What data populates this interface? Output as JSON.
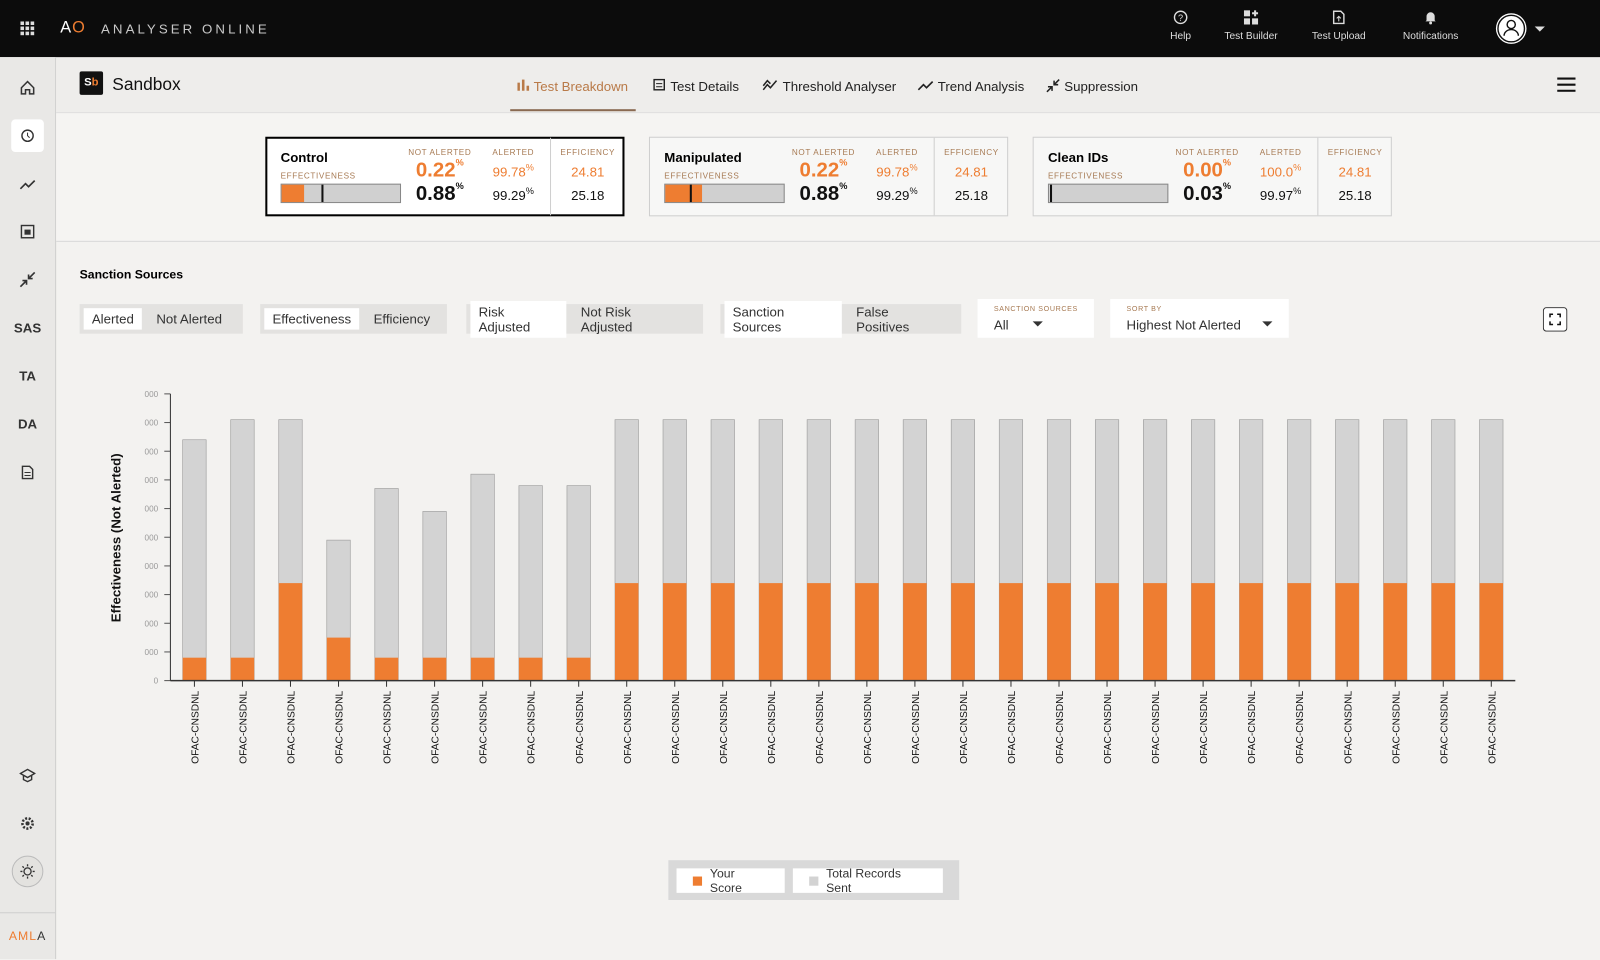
{
  "header": {
    "logo": [
      "A",
      "O"
    ],
    "app_name": "ANALYSER ONLINE",
    "actions": [
      "Help",
      "Test Builder",
      "Test Upload",
      "Notifications"
    ]
  },
  "sidebar": {
    "labels": [
      "SAS",
      "TA",
      "DA"
    ],
    "footer": [
      "AML",
      "A"
    ]
  },
  "workspace": {
    "badge": [
      "S",
      "b"
    ],
    "title": "Sandbox"
  },
  "tabs": {
    "items": [
      "Test Breakdown",
      "Test Details",
      "Threshold Analyser",
      "Trend Analysis",
      "Suppression"
    ],
    "active": 0
  },
  "summary": {
    "labels": {
      "effectiveness": "EFFECTIVENESS",
      "not_alerted": "NOT ALERTED",
      "alerted": "ALERTED",
      "efficiency": "EFFICIENCY"
    },
    "percent_sign": "%",
    "selected": 0,
    "cards": [
      {
        "title": "Control",
        "not_alerted": [
          "0.22",
          "0.88"
        ],
        "alerted": [
          "99.78",
          "99.29"
        ],
        "efficiency": [
          "24.81",
          "25.18"
        ],
        "bar_fill": 0.19,
        "bar_marker": 0.34
      },
      {
        "title": "Manipulated",
        "not_alerted": [
          "0.22",
          "0.88"
        ],
        "alerted": [
          "99.78",
          "99.29"
        ],
        "efficiency": [
          "24.81",
          "25.18"
        ],
        "bar_fill": 0.31,
        "bar_marker": 0.21
      },
      {
        "title": "Clean IDs",
        "not_alerted": [
          "0.00",
          "0.03"
        ],
        "alerted": [
          "100.0",
          "99.97"
        ],
        "efficiency": [
          "24.81",
          "25.18"
        ],
        "bar_fill": 0,
        "bar_marker": 0.01
      }
    ]
  },
  "controls": {
    "section_title": "Sanction Sources",
    "toggles": [
      {
        "options": [
          "Alerted",
          "Not Alerted"
        ],
        "selected": 0
      },
      {
        "options": [
          "Effectiveness",
          "Efficiency"
        ],
        "selected": 0
      },
      {
        "options": [
          "Risk Adjusted",
          "Not Risk Adjusted"
        ],
        "selected": 0
      },
      {
        "options": [
          "Sanction Sources",
          "False Positives"
        ],
        "selected": 0
      }
    ],
    "dropdowns": [
      {
        "label": "SANCTION SOURCES",
        "value": "All"
      },
      {
        "label": "SORT BY",
        "value": "Highest Not Alerted"
      }
    ]
  },
  "chart_data": {
    "type": "bar",
    "y_label": "Effectiveness (Not Alerted)",
    "categories": [
      "OFAC-CNSDNL",
      "OFAC-CNSDNL",
      "OFAC-CNSDNL",
      "OFAC-CNSDNL",
      "OFAC-CNSDNL",
      "OFAC-CNSDNL",
      "OFAC-CNSDNL",
      "OFAC-CNSDNL",
      "OFAC-CNSDNL",
      "OFAC-CNSDNL",
      "OFAC-CNSDNL",
      "OFAC-CNSDNL",
      "OFAC-CNSDNL",
      "OFAC-CNSDNL",
      "OFAC-CNSDNL",
      "OFAC-CNSDNL",
      "OFAC-CNSDNL",
      "OFAC-CNSDNL",
      "OFAC-CNSDNL",
      "OFAC-CNSDNL",
      "OFAC-CNSDNL",
      "OFAC-CNSDNL",
      "OFAC-CNSDNL",
      "OFAC-CNSDNL",
      "OFAC-CNSDNL",
      "OFAC-CNSDNL",
      "OFAC-CNSDNL",
      "OFAC-CNSDNL"
    ],
    "series": [
      {
        "name": "Your Score",
        "color": "#ee7d31",
        "values": [
          0.8,
          0.8,
          3.4,
          1.5,
          0.8,
          0.8,
          0.8,
          0.8,
          0.8,
          3.4,
          3.4,
          3.4,
          3.4,
          3.4,
          3.4,
          3.4,
          3.4,
          3.4,
          3.4,
          3.4,
          3.4,
          3.4,
          3.4,
          3.4,
          3.4,
          3.4,
          3.4,
          3.4
        ]
      },
      {
        "name": "Total Records Sent",
        "color": "#d3d3d3",
        "values": [
          8.4,
          9.1,
          9.1,
          4.9,
          6.7,
          5.9,
          7.2,
          6.8,
          6.8,
          9.1,
          9.1,
          9.1,
          9.1,
          9.1,
          9.1,
          9.1,
          9.1,
          9.1,
          9.1,
          9.1,
          9.1,
          9.1,
          9.1,
          9.1,
          9.1,
          9.1,
          9.1,
          9.1
        ]
      }
    ],
    "ylim": [
      0,
      10
    ],
    "yticks": [
      0,
      {
        "value": 1,
        "label": "000"
      },
      {
        "value": 2,
        "label": "000"
      },
      {
        "value": 3,
        "label": "000"
      },
      {
        "value": 4,
        "label": "000"
      },
      {
        "value": 5,
        "label": "000"
      },
      {
        "value": 6,
        "label": "000"
      },
      {
        "value": 7,
        "label": "000"
      },
      {
        "value": 8,
        "label": "000"
      },
      {
        "value": 9,
        "label": "000"
      },
      {
        "value": 10,
        "label": "000"
      }
    ]
  }
}
